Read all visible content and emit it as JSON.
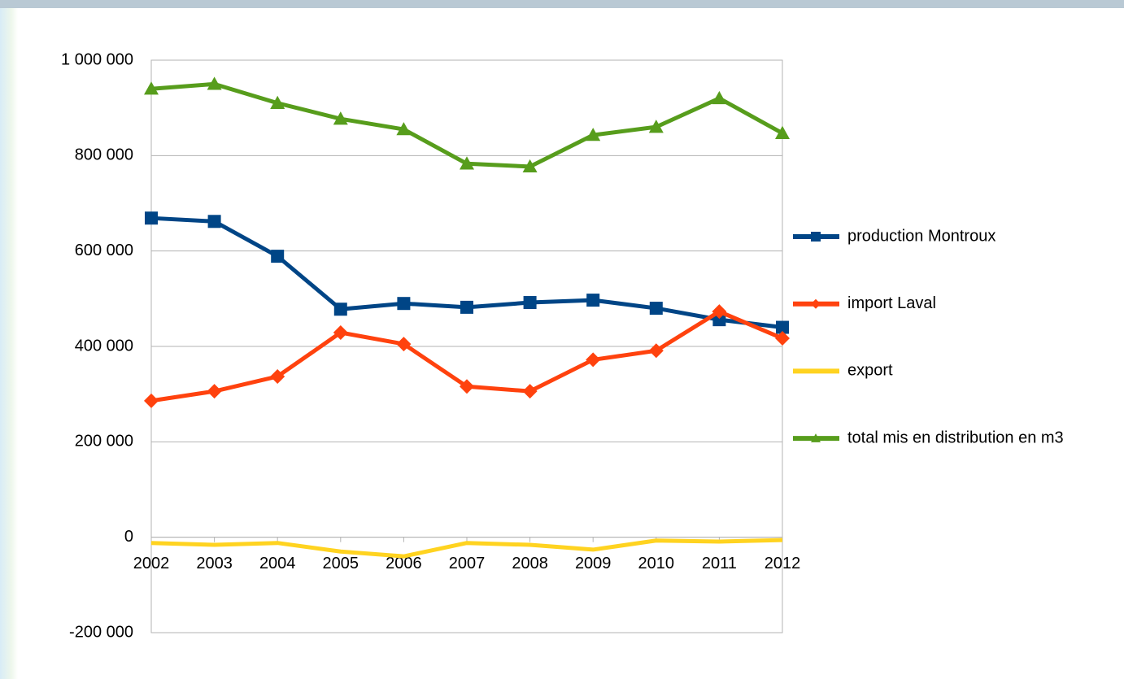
{
  "chart_data": {
    "type": "line",
    "categories": [
      "2002",
      "2003",
      "2004",
      "2005",
      "2006",
      "2007",
      "2008",
      "2009",
      "2010",
      "2011",
      "2012"
    ],
    "series": [
      {
        "name": "production Montroux",
        "color": "#004586",
        "marker": "square",
        "values": [
          669000,
          662000,
          589000,
          478000,
          490000,
          482000,
          492000,
          497000,
          480000,
          456000,
          440000
        ]
      },
      {
        "name": "import Laval",
        "color": "#ff420e",
        "marker": "diamond",
        "values": [
          286000,
          306000,
          337000,
          429000,
          405000,
          316000,
          306000,
          372000,
          391000,
          473000,
          417000
        ]
      },
      {
        "name": "export",
        "color": "#ffd320",
        "marker": "none",
        "values": [
          -12000,
          -16000,
          -12000,
          -30000,
          -40000,
          -12000,
          -16000,
          -26000,
          -7000,
          -9000,
          -6000
        ]
      },
      {
        "name": "total mis en distribution en m3",
        "color": "#579d1c",
        "marker": "triangle",
        "values": [
          940000,
          950000,
          910000,
          877000,
          855000,
          783000,
          777000,
          843000,
          860000,
          920000,
          847000
        ]
      }
    ],
    "ylim": [
      -200000,
      1000000
    ],
    "yticks": [
      {
        "value": -200000,
        "label": "-200 000"
      },
      0,
      {
        "value": 200000,
        "label": "200 000"
      },
      {
        "value": 400000,
        "label": "400 000"
      },
      {
        "value": 600000,
        "label": "600 000"
      },
      {
        "value": 800000,
        "label": "800 000"
      },
      {
        "value": 1000000,
        "label": "1 000 000"
      }
    ],
    "grid": true,
    "legend": "right"
  }
}
